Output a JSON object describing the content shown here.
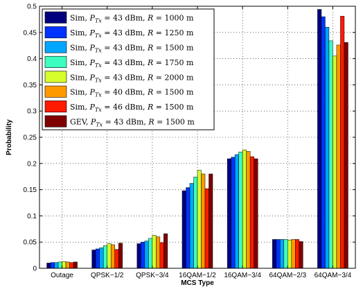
{
  "chart_data": {
    "type": "bar",
    "title": "",
    "xlabel": "MCS Type",
    "ylabel": "Probability",
    "ylim": [
      0,
      0.5
    ],
    "yticks": [
      "0",
      "0.05",
      "0.1",
      "0.15",
      "0.2",
      "0.25",
      "0.3",
      "0.35",
      "0.4",
      "0.45",
      "0.5"
    ],
    "grid": true,
    "legend_position": "top-left",
    "categories": [
      "Outage",
      "QPSK−1/2",
      "QPSK−3/4",
      "16QAM−1/2",
      "16QAM−3/4",
      "64QAM−2/3",
      "64QAM−3/4"
    ],
    "series": [
      {
        "name": "Sim, P_Tx = 43 dBm, R = 1000 m",
        "legend": {
          "pre": "Sim, ",
          "sym": "P",
          "sub": "Tx",
          "post": " = 43 dBm, ",
          "r": "R",
          "rval": " = 1000 m"
        },
        "color": "#00007f",
        "values": [
          0.01,
          0.035,
          0.047,
          0.148,
          0.209,
          0.055,
          0.494
        ]
      },
      {
        "name": "Sim, P_Tx = 43 dBm, R = 1250 m",
        "legend": {
          "pre": "Sim, ",
          "sym": "P",
          "sub": "Tx",
          "post": " = 43 dBm, ",
          "r": "R",
          "rval": " = 1250 m"
        },
        "color": "#0033ff",
        "values": [
          0.011,
          0.037,
          0.05,
          0.154,
          0.212,
          0.055,
          0.48
        ]
      },
      {
        "name": "Sim, P_Tx = 43 dBm, R = 1500 m",
        "legend": {
          "pre": "Sim, ",
          "sym": "P",
          "sub": "Tx",
          "post": " = 43 dBm, ",
          "r": "R",
          "rval": " = 1500 m"
        },
        "color": "#00a6ff",
        "values": [
          0.011,
          0.039,
          0.052,
          0.162,
          0.217,
          0.055,
          0.46
        ]
      },
      {
        "name": "Sim, P_Tx = 43 dBm, R = 1750 m",
        "legend": {
          "pre": "Sim, ",
          "sym": "P",
          "sub": "Tx",
          "post": " = 43 dBm, ",
          "r": "R",
          "rval": " = 1750 m"
        },
        "color": "#3dffbf",
        "values": [
          0.012,
          0.043,
          0.057,
          0.174,
          0.222,
          0.055,
          0.434
        ]
      },
      {
        "name": "Sim, P_Tx = 43 dBm, R = 2000 m",
        "legend": {
          "pre": "Sim, ",
          "sym": "P",
          "sub": "Tx",
          "post": " = 43 dBm, ",
          "r": "R",
          "rval": " = 2000 m"
        },
        "color": "#d4ff2b",
        "values": [
          0.013,
          0.047,
          0.063,
          0.187,
          0.226,
          0.054,
          0.405
        ]
      },
      {
        "name": "Sim, P_Tx = 40 dBm, R = 1500 m",
        "legend": {
          "pre": "Sim, ",
          "sym": "P",
          "sub": "Tx",
          "post": " = 40 dBm, ",
          "r": "R",
          "rval": " = 1500 m"
        },
        "color": "#ff9900",
        "values": [
          0.012,
          0.045,
          0.06,
          0.18,
          0.223,
          0.055,
          0.426
        ]
      },
      {
        "name": "Sim, P_Tx = 46 dBm, R = 1500 m",
        "legend": {
          "pre": "Sim, ",
          "sym": "P",
          "sub": "Tx",
          "post": " = 46 dBm, ",
          "r": "R",
          "rval": " = 1500 m"
        },
        "color": "#ff1a00",
        "values": [
          0.011,
          0.036,
          0.049,
          0.152,
          0.213,
          0.055,
          0.481
        ]
      },
      {
        "name": "GEV, P_Tx = 43 dBm, R = 1500 m",
        "legend": {
          "pre": "GEV, ",
          "sym": "P",
          "sub": "Tx",
          "post": " = 43 dBm, ",
          "r": "R",
          "rval": " = 1500 m"
        },
        "color": "#7f0000",
        "values": [
          0.012,
          0.048,
          0.066,
          0.18,
          0.209,
          0.051,
          0.431
        ]
      }
    ]
  }
}
